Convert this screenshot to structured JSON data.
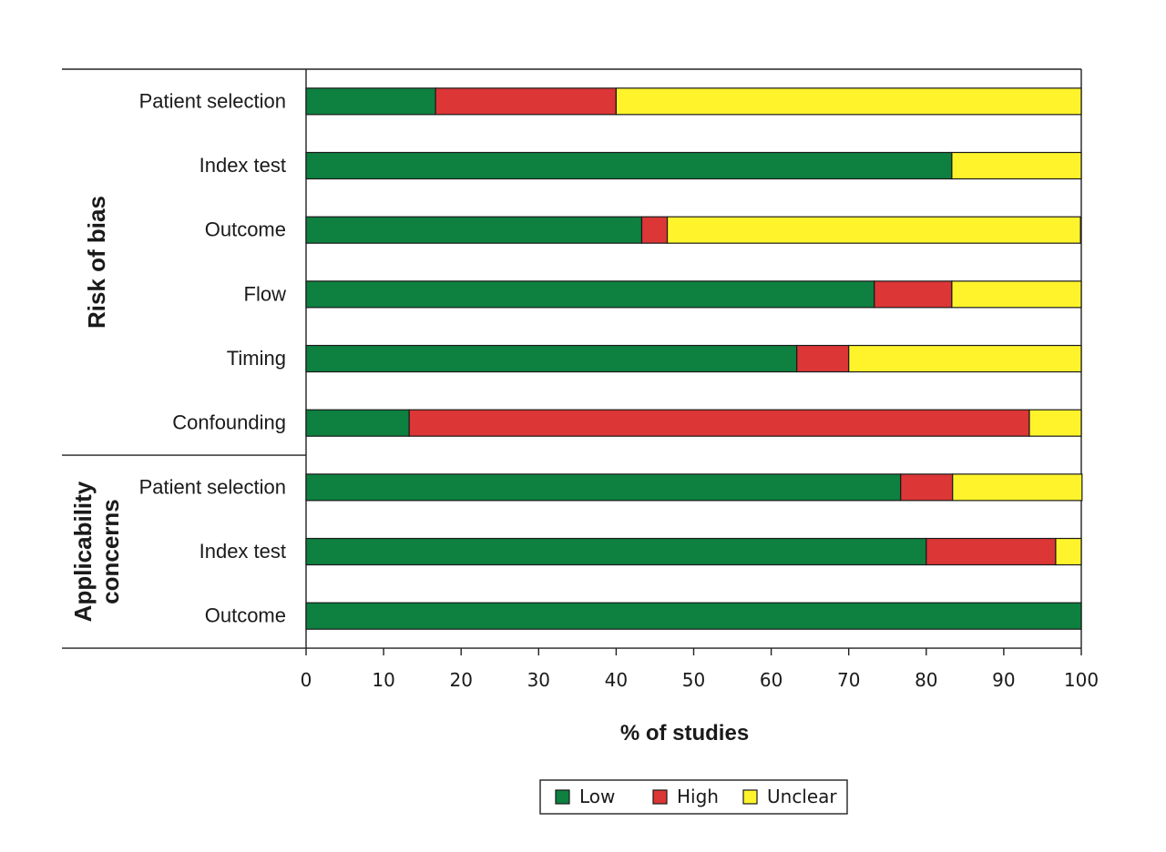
{
  "chart_data": {
    "type": "bar",
    "orientation": "horizontal",
    "stacked": true,
    "xlabel": "% of studies",
    "xlim": [
      0,
      100
    ],
    "xticks": [
      0,
      10,
      20,
      30,
      40,
      50,
      60,
      70,
      80,
      90,
      100
    ],
    "grid": false,
    "legend_position": "bottom",
    "series": [
      {
        "name": "Low",
        "color": "#0e8040"
      },
      {
        "name": "High",
        "color": "#dc3636"
      },
      {
        "name": "Unclear",
        "color": "#fff42c"
      }
    ],
    "groups": [
      {
        "label": "Risk of bias",
        "items": [
          {
            "label": "Patient selection",
            "values": [
              16.7,
              23.3,
              60.0
            ]
          },
          {
            "label": "Index test",
            "values": [
              83.3,
              0,
              16.7
            ]
          },
          {
            "label": "Outcome",
            "values": [
              43.3,
              3.3,
              53.3
            ]
          },
          {
            "label": "Flow",
            "values": [
              73.3,
              10.0,
              16.7
            ]
          },
          {
            "label": "Timing",
            "values": [
              63.3,
              6.7,
              30.0
            ]
          },
          {
            "label": "Confounding",
            "values": [
              13.3,
              80.0,
              6.7
            ]
          }
        ]
      },
      {
        "label_lines": [
          "Applicability",
          "concerns"
        ],
        "items": [
          {
            "label": "Patient selection",
            "values": [
              76.7,
              6.7,
              16.7
            ]
          },
          {
            "label": "Index test",
            "values": [
              80.0,
              16.7,
              3.3
            ]
          },
          {
            "label": "Outcome",
            "values": [
              100.0,
              0,
              0
            ]
          }
        ]
      }
    ]
  }
}
